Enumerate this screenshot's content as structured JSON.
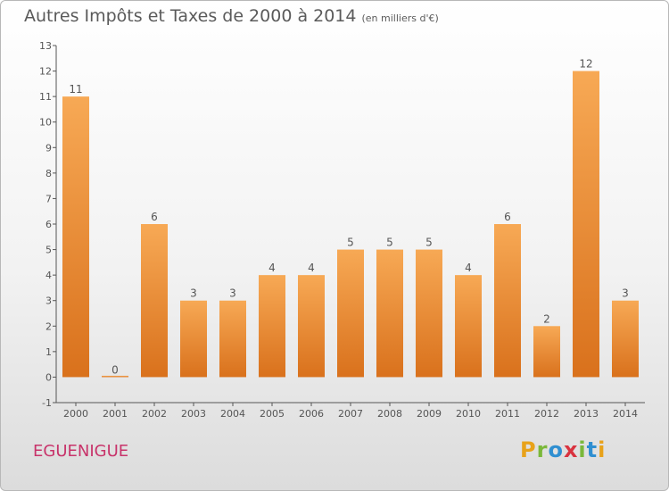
{
  "title": "Autres Impôts et Taxes de 2000 à 2014",
  "subtitle": "(en milliers d'€)",
  "commune": "EGUENIGUE",
  "brand": {
    "letters": [
      "P",
      "r",
      "o",
      "x",
      "i",
      "t",
      "i"
    ],
    "colors": [
      "#e8a21a",
      "#7ab83a",
      "#2f8fd1",
      "#d9333f",
      "#7ab83a",
      "#2f8fd1",
      "#e8a21a"
    ]
  },
  "colors": {
    "bar_top": "#f7a955",
    "bar_bottom": "#d9711c",
    "axis": "#555555",
    "label": "#555555"
  },
  "chart_data": {
    "type": "bar",
    "categories": [
      "2000",
      "2001",
      "2002",
      "2003",
      "2004",
      "2005",
      "2006",
      "2007",
      "2008",
      "2009",
      "2010",
      "2011",
      "2012",
      "2013",
      "2014"
    ],
    "values": [
      11,
      0,
      6,
      3,
      3,
      4,
      4,
      5,
      5,
      5,
      4,
      6,
      2,
      12,
      3
    ],
    "ylim": [
      -1,
      13
    ],
    "yticks": [
      -1,
      0,
      1,
      2,
      3,
      4,
      5,
      6,
      7,
      8,
      9,
      10,
      11,
      12,
      13
    ],
    "data_labels": true,
    "grid": false,
    "legend": "none"
  }
}
